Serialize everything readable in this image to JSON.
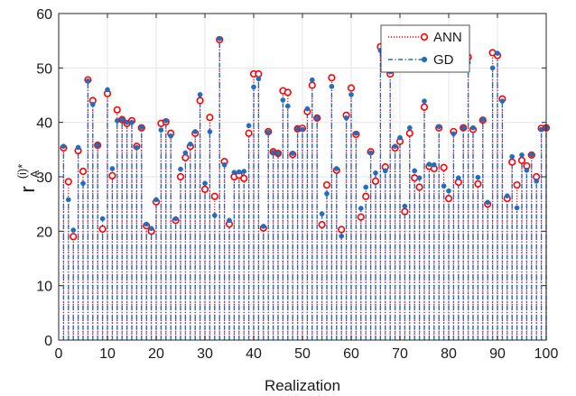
{
  "chart_data": {
    "type": "stem",
    "title": "",
    "xlabel": "Realization",
    "ylabel": {
      "base": "r",
      "superscript": "(i)*",
      "subscript": "A"
    },
    "xlim": [
      0,
      100
    ],
    "ylim": [
      0,
      60
    ],
    "xticks": [
      0,
      10,
      20,
      30,
      40,
      50,
      60,
      70,
      80,
      90,
      100
    ],
    "yticks": [
      0,
      10,
      20,
      30,
      40,
      50,
      60
    ],
    "grid": true,
    "legend_position": "top-right",
    "x": [
      1,
      2,
      3,
      4,
      5,
      6,
      7,
      8,
      9,
      10,
      11,
      12,
      13,
      14,
      15,
      16,
      17,
      18,
      19,
      20,
      21,
      22,
      23,
      24,
      25,
      26,
      27,
      28,
      29,
      30,
      31,
      32,
      33,
      34,
      35,
      36,
      37,
      38,
      39,
      40,
      41,
      42,
      43,
      44,
      45,
      46,
      47,
      48,
      49,
      50,
      51,
      52,
      53,
      54,
      55,
      56,
      57,
      58,
      59,
      60,
      61,
      62,
      63,
      64,
      65,
      66,
      67,
      68,
      69,
      70,
      71,
      72,
      73,
      74,
      75,
      76,
      77,
      78,
      79,
      80,
      81,
      82,
      83,
      84,
      85,
      86,
      87,
      88,
      89,
      90,
      91,
      92,
      93,
      94,
      95,
      96,
      97,
      98,
      99,
      100
    ],
    "series": [
      {
        "name": "ANN",
        "color": "#ff0000",
        "line_style": "dotted",
        "marker": "circle-open",
        "values": [
          35.3,
          29.1,
          19.0,
          34.8,
          31.0,
          47.8,
          44.0,
          35.8,
          20.4,
          45.3,
          30.2,
          42.3,
          40.5,
          39.8,
          40.3,
          35.6,
          39.0,
          21.0,
          20.0,
          25.4,
          39.8,
          40.1,
          38.0,
          22.0,
          30.0,
          33.5,
          35.6,
          38.0,
          44.0,
          27.7,
          40.9,
          26.4,
          55.2,
          32.8,
          21.3,
          30.0,
          30.3,
          29.7,
          38.0,
          48.9,
          48.9,
          20.6,
          38.3,
          34.6,
          34.3,
          45.8,
          45.5,
          34.1,
          38.8,
          38.9,
          42.0,
          46.8,
          40.8,
          21.2,
          28.5,
          48.2,
          31.2,
          20.3,
          41.3,
          46.3,
          37.8,
          22.6,
          26.4,
          34.6,
          29.2,
          53.9,
          31.8,
          48.9,
          35.3,
          36.5,
          23.6,
          38.0,
          29.8,
          28.1,
          42.8,
          31.9,
          31.5,
          39.0,
          31.7,
          26.0,
          38.3,
          29.0,
          39.0,
          52.0,
          38.7,
          28.7,
          40.4,
          25.0,
          52.8,
          52.3,
          44.3,
          26.0,
          32.7,
          28.5,
          33.0,
          32.0,
          34.0,
          30.0,
          38.9,
          39.0
        ]
      },
      {
        "name": "GD",
        "color": "#1f6fbf",
        "line_style": "dashdot",
        "marker": "point",
        "values": [
          35.6,
          25.8,
          20.2,
          35.4,
          28.8,
          47.6,
          43.3,
          35.8,
          22.3,
          46.0,
          31.5,
          40.3,
          40.5,
          40.0,
          40.0,
          35.4,
          39.1,
          21.3,
          20.5,
          25.8,
          38.6,
          40.3,
          37.5,
          22.3,
          31.4,
          34.4,
          36.0,
          38.3,
          45.1,
          28.8,
          38.3,
          22.9,
          55.4,
          32.2,
          22.0,
          30.8,
          30.9,
          31.0,
          39.4,
          46.5,
          48.0,
          20.9,
          38.2,
          34.5,
          34.3,
          44.1,
          43.0,
          34.3,
          38.8,
          38.7,
          42.5,
          47.8,
          40.8,
          23.2,
          26.9,
          46.6,
          31.5,
          19.1,
          40.8,
          45.1,
          38.0,
          24.2,
          28.1,
          34.4,
          30.7,
          53.2,
          31.1,
          49.3,
          35.6,
          37.2,
          24.6,
          39.0,
          31.1,
          29.8,
          43.9,
          32.3,
          32.2,
          39.2,
          28.3,
          27.4,
          37.9,
          29.8,
          39.0,
          51.0,
          39.0,
          29.9,
          40.5,
          25.3,
          50.0,
          52.7,
          43.9,
          26.5,
          33.7,
          24.3,
          34.0,
          31.2,
          34.1,
          29.2,
          38.7,
          39.0
        ]
      }
    ]
  }
}
